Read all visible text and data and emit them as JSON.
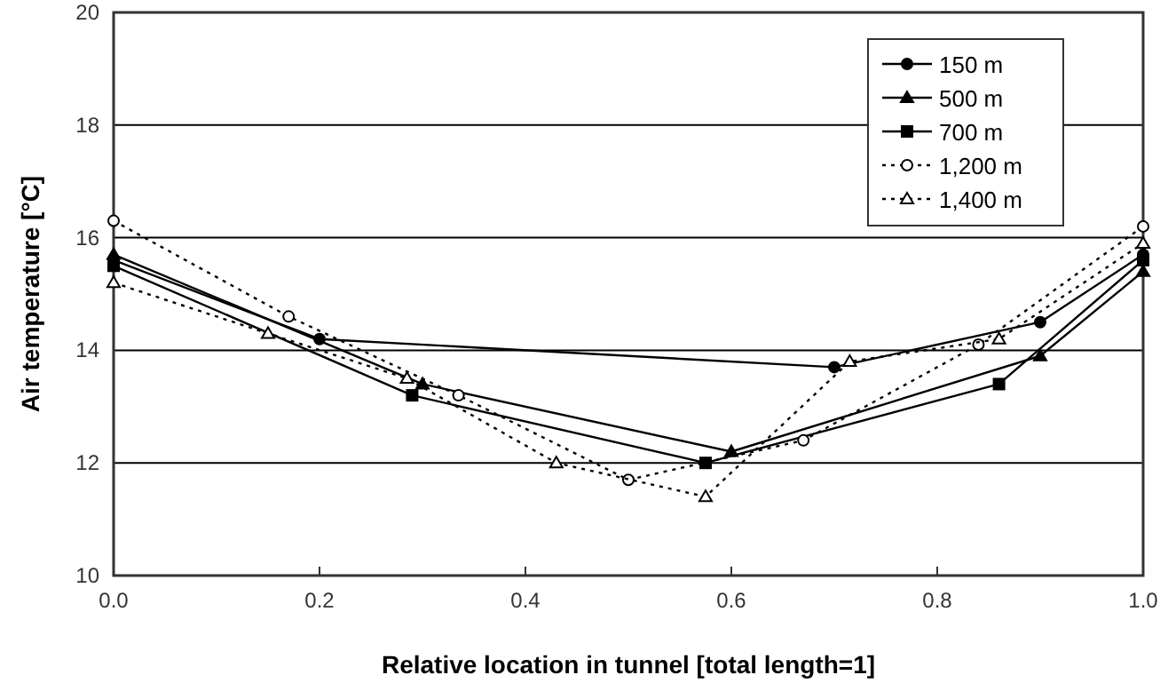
{
  "chart_data": {
    "type": "line",
    "xlabel": "Relative location in tunnel [total length=1]",
    "ylabel": "Air temperature [°C]",
    "xlim": [
      0,
      1
    ],
    "xticks": [
      {
        "value": 0,
        "label": "0.0"
      },
      {
        "value": 0.2,
        "label": "0.2"
      },
      {
        "value": 0.4,
        "label": "0.4"
      },
      {
        "value": 0.6,
        "label": "0.6"
      },
      {
        "value": 0.8,
        "label": "0.8"
      },
      {
        "value": 1,
        "label": "1.0"
      }
    ],
    "ylim": [
      10,
      20
    ],
    "yticks": [
      10,
      12,
      14,
      16,
      18,
      20
    ],
    "grid": "y",
    "legend": "top right",
    "series": [
      {
        "name": "150 m",
        "color": "#000000",
        "marker": "circle",
        "line_style": "solid",
        "x": [
          0,
          0.2,
          0.7,
          0.9,
          1.0
        ],
        "values": [
          15.6,
          14.2,
          13.7,
          14.5,
          15.7
        ]
      },
      {
        "name": "500 m",
        "color": "#000000",
        "marker": "triangle",
        "line_style": "solid",
        "x": [
          0,
          0.3,
          0.6,
          0.9,
          1.0
        ],
        "values": [
          15.7,
          13.4,
          12.2,
          13.9,
          15.4
        ]
      },
      {
        "name": "700 m",
        "color": "#000000",
        "marker": "square",
        "line_style": "solid",
        "x": [
          0,
          0.29,
          0.575,
          0.86,
          1.0
        ],
        "values": [
          15.5,
          13.2,
          12.0,
          13.4,
          15.6
        ]
      },
      {
        "name": "1,200 m",
        "color": "#000000",
        "marker": "circle",
        "line_style": "dotted",
        "x": [
          0,
          0.17,
          0.335,
          0.5,
          0.67,
          0.84,
          1.0
        ],
        "values": [
          16.3,
          14.6,
          13.2,
          11.7,
          12.4,
          14.1,
          16.2
        ]
      },
      {
        "name": "1,400 m",
        "color": "#000000",
        "marker": "triangle",
        "line_style": "dotted",
        "x": [
          0,
          0.15,
          0.285,
          0.43,
          0.575,
          0.715,
          0.86,
          1.0
        ],
        "values": [
          15.2,
          14.3,
          13.5,
          12.0,
          11.4,
          13.8,
          14.2,
          15.9
        ]
      }
    ]
  }
}
